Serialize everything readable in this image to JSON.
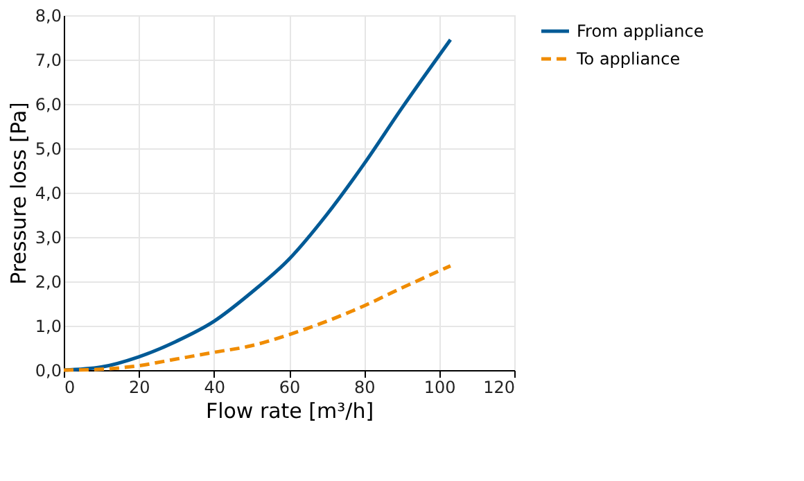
{
  "chart_data": {
    "type": "line",
    "xlabel": "Flow rate [m³/h]",
    "ylabel": "Pressure loss [Pa]",
    "xlim": [
      0,
      120
    ],
    "xticks": [
      0,
      20,
      40,
      60,
      80,
      100,
      120
    ],
    "ylim": [
      0,
      8
    ],
    "yticks": [
      {
        "value": 0,
        "label": "0,0"
      },
      {
        "value": 1,
        "label": "1,0"
      },
      {
        "value": 2,
        "label": "2,0"
      },
      {
        "value": 3,
        "label": "3,0"
      },
      {
        "value": 4,
        "label": "4,0"
      },
      {
        "value": 5,
        "label": "5,0"
      },
      {
        "value": 6,
        "label": "6,0"
      },
      {
        "value": 7,
        "label": "7,0"
      },
      {
        "value": 8,
        "label": "8,0"
      }
    ],
    "grid": true,
    "legend": "right",
    "marker": "none",
    "x": [
      0,
      10,
      20,
      30,
      40,
      50,
      60,
      70,
      80,
      90,
      103
    ],
    "series": [
      {
        "name": "From appliance",
        "color": "#005a96",
        "line_style": "solid",
        "values": [
          0,
          0.07,
          0.3,
          0.65,
          1.1,
          1.75,
          2.5,
          3.5,
          4.65,
          5.9,
          7.45
        ]
      },
      {
        "name": "To appliance",
        "color": "#f08c00",
        "line_style": "dashed",
        "values": [
          0,
          0.02,
          0.1,
          0.25,
          0.4,
          0.55,
          0.8,
          1.1,
          1.45,
          1.85,
          2.35
        ]
      }
    ]
  }
}
